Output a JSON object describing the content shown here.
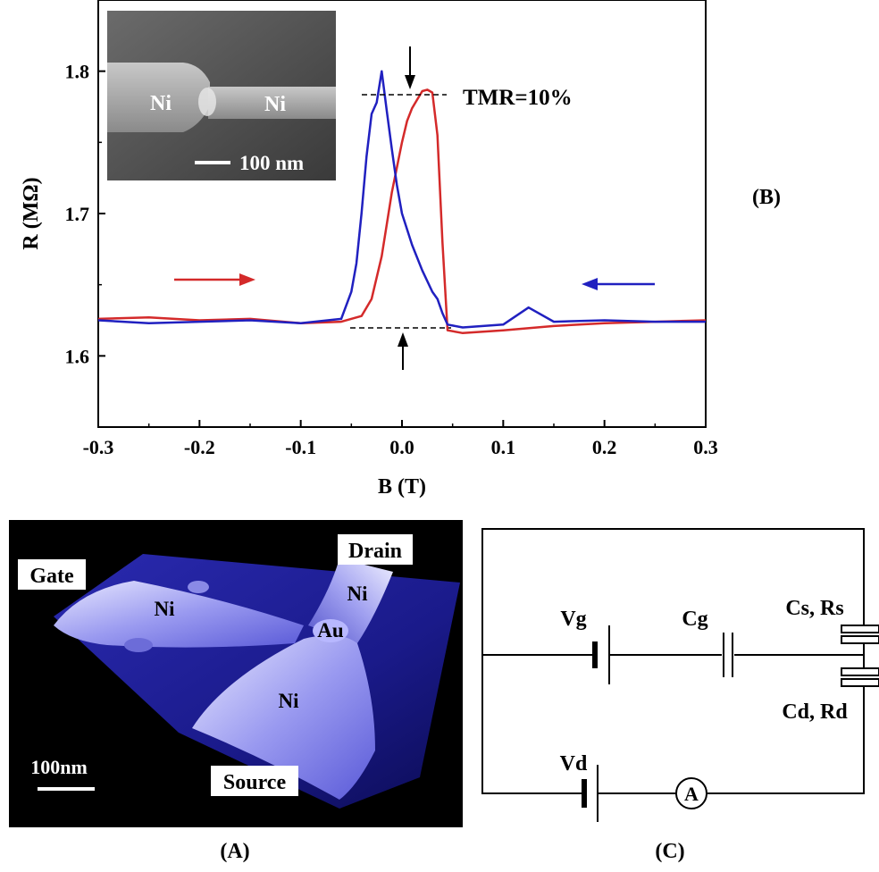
{
  "chart_data": {
    "type": "line",
    "panel_label": "(B)",
    "xlabel": "B (T)",
    "ylabel": "R (MΩ)",
    "xlim": [
      -0.3,
      0.3
    ],
    "ylim": [
      1.55,
      1.85
    ],
    "x_ticks": [
      "-0.3",
      "-0.2",
      "-0.1",
      "0.0",
      "0.1",
      "0.2",
      "0.3"
    ],
    "y_ticks": [
      "1.6",
      "1.7",
      "1.8"
    ],
    "annotation": "TMR=10%",
    "series": [
      {
        "color": "#d42a2a",
        "direction": "increasing B",
        "x": [
          -0.3,
          -0.25,
          -0.2,
          -0.15,
          -0.1,
          -0.06,
          -0.04,
          -0.03,
          -0.02,
          -0.01,
          0.0,
          0.005,
          0.01,
          0.015,
          0.02,
          0.025,
          0.03,
          0.035,
          0.04,
          0.045,
          0.06,
          0.1,
          0.15,
          0.2,
          0.25,
          0.3
        ],
        "y": [
          1.626,
          1.627,
          1.625,
          1.626,
          1.623,
          1.624,
          1.628,
          1.64,
          1.67,
          1.715,
          1.75,
          1.765,
          1.774,
          1.78,
          1.786,
          1.787,
          1.785,
          1.755,
          1.68,
          1.618,
          1.616,
          1.618,
          1.621,
          1.623,
          1.624,
          1.625
        ]
      },
      {
        "color": "#2020c0",
        "direction": "decreasing B",
        "x": [
          0.3,
          0.25,
          0.2,
          0.15,
          0.125,
          0.1,
          0.06,
          0.045,
          0.04,
          0.035,
          0.03,
          0.02,
          0.01,
          0.0,
          -0.005,
          -0.01,
          -0.015,
          -0.02,
          -0.025,
          -0.03,
          -0.035,
          -0.04,
          -0.045,
          -0.05,
          -0.06,
          -0.1,
          -0.15,
          -0.2,
          -0.25,
          -0.3
        ],
        "y": [
          1.624,
          1.624,
          1.625,
          1.624,
          1.634,
          1.622,
          1.62,
          1.622,
          1.63,
          1.64,
          1.645,
          1.66,
          1.678,
          1.7,
          1.72,
          1.745,
          1.772,
          1.8,
          1.778,
          1.77,
          1.74,
          1.7,
          1.665,
          1.645,
          1.626,
          1.623,
          1.625,
          1.624,
          1.623,
          1.625
        ]
      }
    ]
  },
  "inset": {
    "left_label": "Ni",
    "right_label": "Ni",
    "scale_label": "100 nm"
  },
  "panel_a": {
    "label": "(A)",
    "gate": "Gate",
    "drain": "Drain",
    "source": "Source",
    "ni_gate": "Ni",
    "ni_drain": "Ni",
    "ni_source": "Ni",
    "au": "Au",
    "scale_label": "100nm"
  },
  "panel_c": {
    "label": "(C)",
    "vg": "Vg",
    "cg": "Cg",
    "cs_rs": "Cs, Rs",
    "cd_rd": "Cd, Rd",
    "vd": "Vd",
    "ammeter": "A"
  }
}
